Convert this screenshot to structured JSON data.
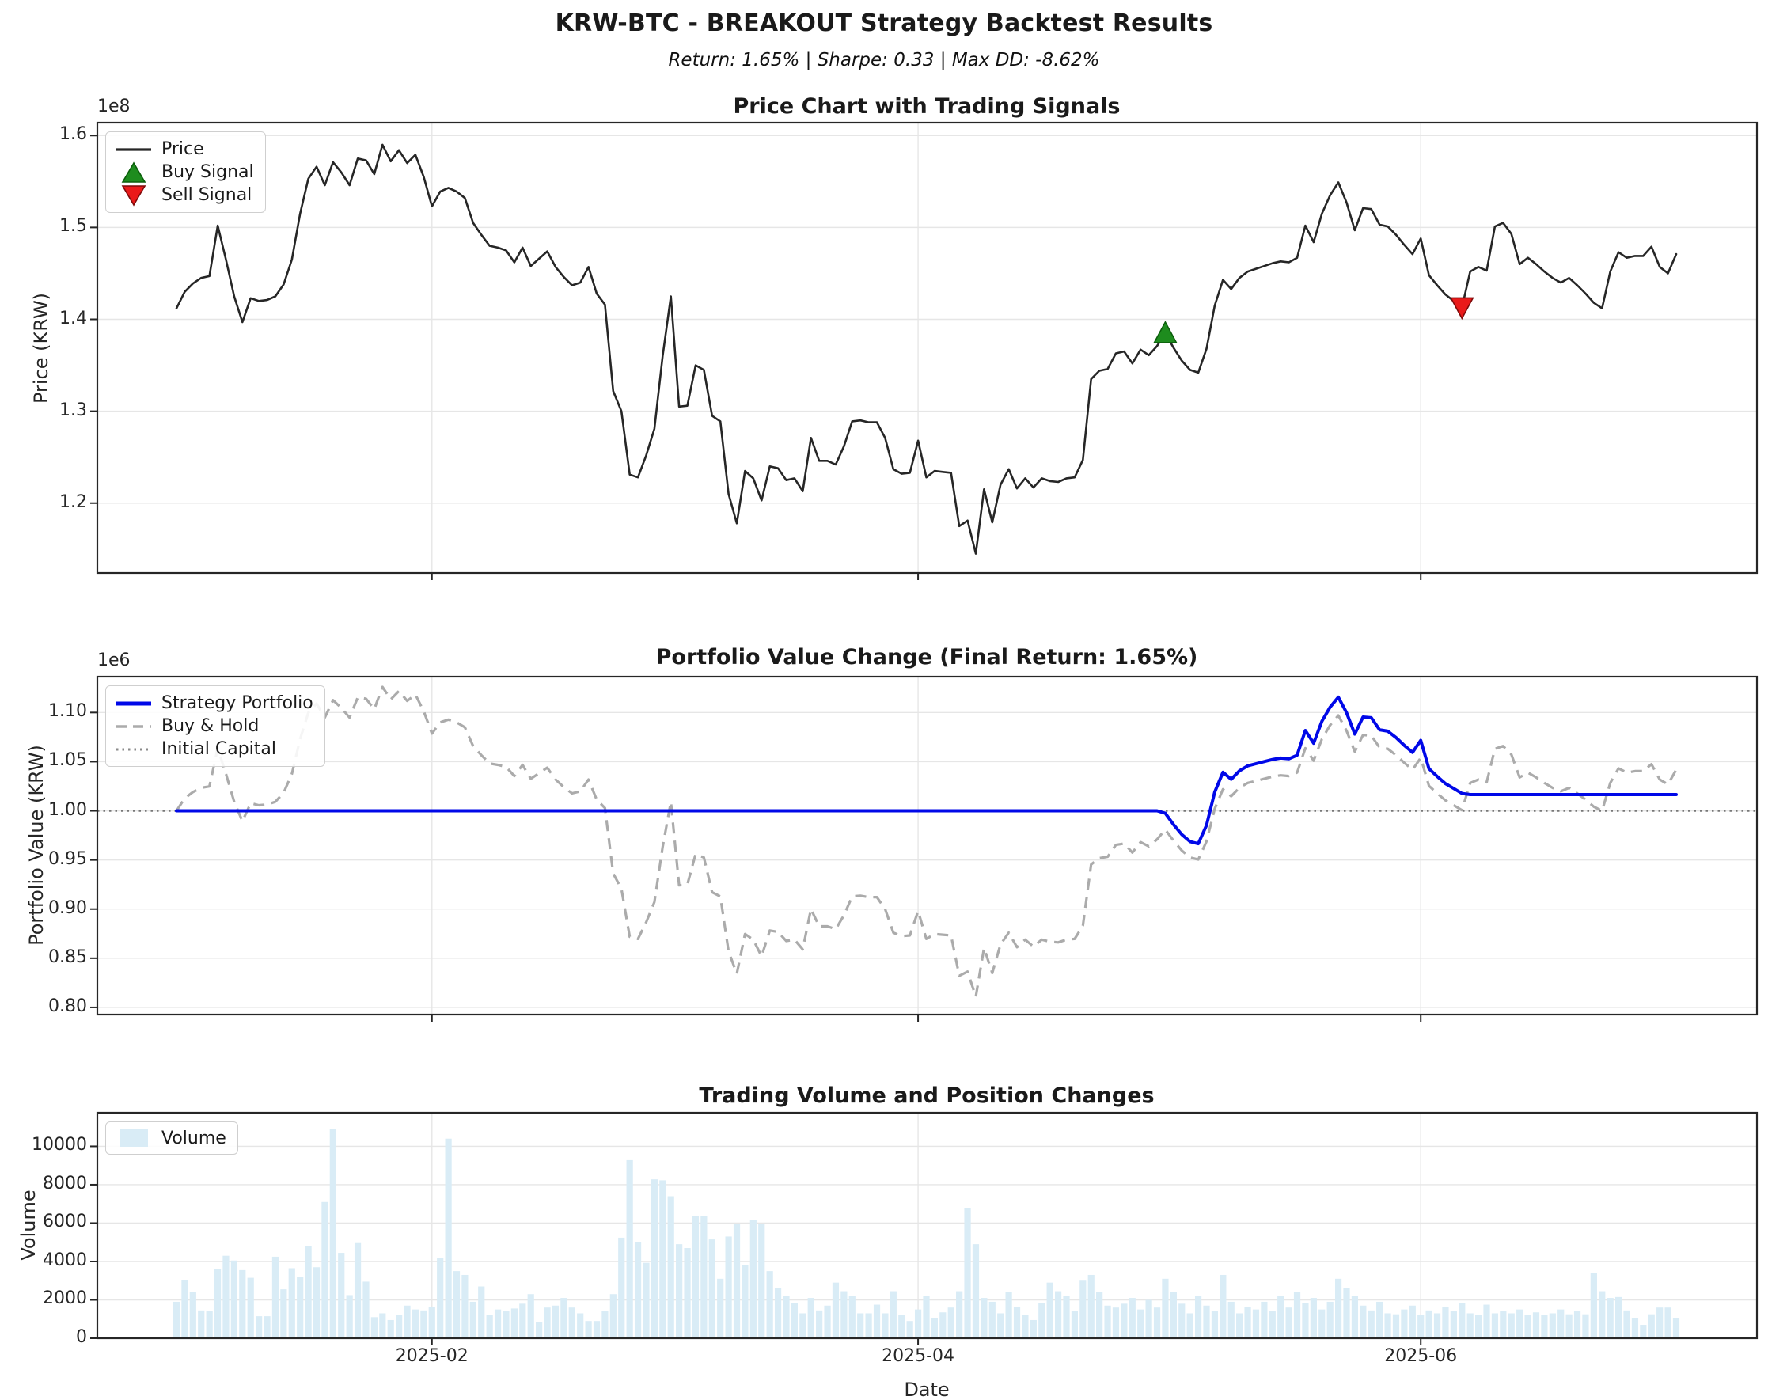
{
  "header": {
    "title": "KRW-BTC - BREAKOUT Strategy Backtest Results",
    "subtitle": "Return: 1.65% | Sharpe: 0.33 | Max DD: -8.62%",
    "metrics": {
      "return_pct": "1.65%",
      "sharpe": "0.33",
      "max_drawdown": "-8.62%"
    }
  },
  "xaxis": {
    "label": "Date",
    "tick_labels": [
      "2025-02",
      "2025-04",
      "2025-06"
    ],
    "tick_days": [
      31,
      90,
      151
    ]
  },
  "colors": {
    "price_line": "#262626",
    "strategy_line": "#0008e8",
    "buy_hold_line": "#ababab",
    "initial_capital_line": "#777777",
    "buy_marker": "#1e8c1e",
    "buy_marker_edge": "#0b5e0b",
    "sell_marker": "#ea1a1a",
    "sell_marker_edge": "#7e0b0b",
    "volume_bar": "#d9ecf6",
    "grid": "#e6e6e6",
    "spine": "#262626"
  },
  "chart_data": [
    {
      "type": "line",
      "title": "Price Chart with Trading Signals",
      "ylabel": "Price (KRW)",
      "y_offset_label": "1e8",
      "y_unit_multiplier": 100000000,
      "ylim": [
        1.124,
        1.614
      ],
      "ytick_values": [
        1.2,
        1.3,
        1.4,
        1.5,
        1.6
      ],
      "ytick_labels": [
        "1.2",
        "1.3",
        "1.4",
        "1.5",
        "1.6"
      ],
      "x_start_date": "2025-01-01",
      "x_end_date": "2025-07-02",
      "grid": true,
      "legend_position": "upper left",
      "legend": {
        "price": "Price",
        "buy": "Buy Signal",
        "sell": "Sell Signal"
      },
      "series": [
        {
          "name": "Price",
          "values": [
            1.412,
            1.43,
            1.439,
            1.445,
            1.447,
            1.502,
            1.465,
            1.425,
            1.397,
            1.423,
            1.42,
            1.421,
            1.425,
            1.438,
            1.465,
            1.515,
            1.553,
            1.566,
            1.546,
            1.571,
            1.56,
            1.546,
            1.575,
            1.573,
            1.558,
            1.59,
            1.572,
            1.584,
            1.57,
            1.579,
            1.555,
            1.523,
            1.539,
            1.543,
            1.539,
            1.532,
            1.505,
            1.492,
            1.48,
            1.478,
            1.475,
            1.462,
            1.478,
            1.458,
            1.466,
            1.474,
            1.457,
            1.446,
            1.437,
            1.44,
            1.457,
            1.428,
            1.416,
            1.322,
            1.3,
            1.231,
            1.228,
            1.252,
            1.281,
            1.36,
            1.425,
            1.305,
            1.306,
            1.35,
            1.345,
            1.295,
            1.289,
            1.21,
            1.178,
            1.235,
            1.227,
            1.203,
            1.24,
            1.238,
            1.225,
            1.227,
            1.213,
            1.271,
            1.246,
            1.246,
            1.242,
            1.262,
            1.289,
            1.29,
            1.288,
            1.288,
            1.271,
            1.237,
            1.232,
            1.233,
            1.268,
            1.228,
            1.235,
            1.234,
            1.233,
            1.175,
            1.181,
            1.145,
            1.215,
            1.179,
            1.22,
            1.237,
            1.216,
            1.227,
            1.217,
            1.227,
            1.224,
            1.223,
            1.227,
            1.228,
            1.247,
            1.335,
            1.344,
            1.346,
            1.363,
            1.365,
            1.352,
            1.367,
            1.361,
            1.371,
            1.385,
            1.369,
            1.355,
            1.345,
            1.342,
            1.368,
            1.415,
            1.443,
            1.433,
            1.445,
            1.452,
            1.455,
            1.458,
            1.461,
            1.463,
            1.462,
            1.467,
            1.502,
            1.484,
            1.515,
            1.535,
            1.549,
            1.527,
            1.497,
            1.521,
            1.52,
            1.503,
            1.501,
            1.492,
            1.481,
            1.471,
            1.488,
            1.448,
            1.437,
            1.427,
            1.42,
            1.413,
            1.452,
            1.457,
            1.453,
            1.501,
            1.505,
            1.493,
            1.46,
            1.467,
            1.46,
            1.452,
            1.445,
            1.44,
            1.445,
            1.437,
            1.428,
            1.418,
            1.412,
            1.452,
            1.473,
            1.467,
            1.469,
            1.469,
            1.479,
            1.457,
            1.45,
            1.471
          ]
        }
      ],
      "signals": {
        "buy": {
          "index": 120,
          "date": "2025-05-01",
          "price_1e8": 1.385
        },
        "sell": {
          "index": 156,
          "date": "2025-06-06",
          "price_1e8": 1.413
        }
      }
    },
    {
      "type": "line",
      "title": "Portfolio Value Change (Final Return: 1.65%)",
      "ylabel": "Portfolio Value (KRW)",
      "y_offset_label": "1e6",
      "y_unit_multiplier": 1000000,
      "ylim": [
        0.7927,
        1.1365
      ],
      "ytick_values": [
        0.8,
        0.85,
        0.9,
        0.95,
        1.0,
        1.05,
        1.1
      ],
      "ytick_labels": [
        "0.80",
        "0.85",
        "0.90",
        "0.95",
        "1.00",
        "1.05",
        "1.10"
      ],
      "grid": true,
      "legend_position": "upper left",
      "legend": {
        "strategy": "Strategy Portfolio",
        "buy_hold": "Buy & Hold",
        "initial": "Initial Capital"
      },
      "initial_capital": 1.0,
      "series": [
        {
          "name": "Strategy Portfolio",
          "derivation": "1.0 before buy_index; price[i]/price[buy_index]*0.9975 while holding (buy_index..sell_index); flat final_value after sell_index",
          "buy_index": 120,
          "sell_index": 156,
          "holding_fee_factor": 0.9975,
          "final_value": 1.0165
        },
        {
          "name": "Buy & Hold",
          "derivation": "price[i]/price[0]"
        },
        {
          "name": "Initial Capital",
          "value": 1.0,
          "style": "dotted"
        }
      ]
    },
    {
      "type": "bar",
      "title": "Trading Volume and Position Changes",
      "ylabel": "Volume",
      "ylim": [
        0,
        11750
      ],
      "ytick_values": [
        0,
        2000,
        4000,
        6000,
        8000,
        10000
      ],
      "ytick_labels": [
        "0",
        "2000",
        "4000",
        "6000",
        "8000",
        "10000"
      ],
      "grid": true,
      "legend_position": "upper left",
      "legend": {
        "volume": "Volume"
      },
      "values": [
        1900,
        3050,
        2400,
        1450,
        1400,
        3600,
        4300,
        4050,
        3550,
        3150,
        1150,
        1150,
        4250,
        2550,
        3650,
        3200,
        4800,
        3700,
        7100,
        10900,
        4450,
        2250,
        5000,
        2950,
        1100,
        1300,
        950,
        1200,
        1700,
        1500,
        1450,
        1650,
        4200,
        10400,
        3500,
        3300,
        1900,
        2700,
        1200,
        1500,
        1400,
        1550,
        1800,
        2300,
        850,
        1600,
        1700,
        2100,
        1600,
        1300,
        900,
        900,
        1400,
        2300,
        5240,
        9280,
        5030,
        3930,
        8280,
        8230,
        7400,
        4900,
        4700,
        6350,
        6350,
        5150,
        3100,
        5300,
        5950,
        3800,
        6150,
        5950,
        3500,
        2600,
        2200,
        1850,
        1300,
        2100,
        1450,
        1700,
        2900,
        2450,
        2200,
        1300,
        1300,
        1750,
        1300,
        2450,
        1200,
        900,
        1500,
        2200,
        1050,
        1350,
        1600,
        2450,
        6800,
        4900,
        2100,
        1900,
        1300,
        2400,
        1650,
        1200,
        950,
        1850,
        2900,
        2450,
        2200,
        1400,
        3000,
        3300,
        2400,
        1700,
        1600,
        1800,
        2100,
        1500,
        2000,
        1600,
        3100,
        2400,
        1800,
        1300,
        2200,
        1700,
        1400,
        3300,
        1900,
        1300,
        1650,
        1500,
        1900,
        1400,
        2200,
        1600,
        2400,
        1850,
        2100,
        1500,
        1900,
        3100,
        2600,
        2200,
        1700,
        1450,
        1900,
        1300,
        1250,
        1500,
        1700,
        1200,
        1450,
        1300,
        1650,
        1400,
        1850,
        1300,
        1200,
        1750,
        1300,
        1400,
        1300,
        1500,
        1200,
        1350,
        1200,
        1300,
        1500,
        1250,
        1400,
        1250,
        3400,
        2450,
        2100,
        2150,
        1450,
        1050,
        700,
        1250,
        1600,
        1600,
        1050
      ]
    }
  ]
}
